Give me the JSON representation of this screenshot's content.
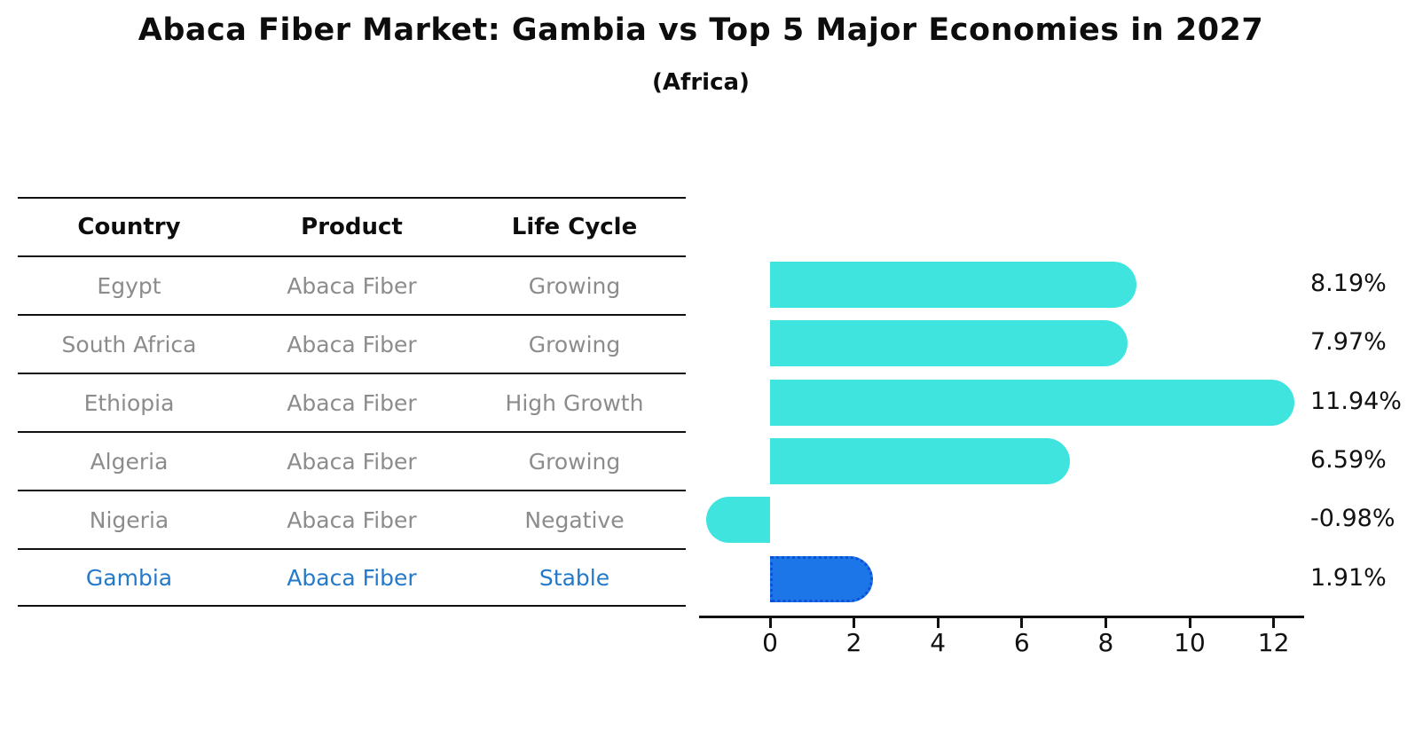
{
  "title": "Abaca Fiber Market: Gambia vs Top 5 Major Economies in 2027",
  "subtitle": "(Africa)",
  "table": {
    "headers": [
      "Country",
      "Product",
      "Life Cycle"
    ],
    "rows": [
      {
        "country": "Egypt",
        "product": "Abaca Fiber",
        "life_cycle": "Growing",
        "highlight": false
      },
      {
        "country": "South Africa",
        "product": "Abaca Fiber",
        "life_cycle": "Growing",
        "highlight": false
      },
      {
        "country": "Ethiopia",
        "product": "Abaca Fiber",
        "life_cycle": "High Growth",
        "highlight": false
      },
      {
        "country": "Algeria",
        "product": "Abaca Fiber",
        "life_cycle": "Growing",
        "highlight": false
      },
      {
        "country": "Nigeria",
        "product": "Abaca Fiber",
        "life_cycle": "Negative",
        "highlight": false
      },
      {
        "country": "Gambia",
        "product": "Abaca Fiber",
        "life_cycle": "Stable",
        "highlight": true
      }
    ]
  },
  "chart_data": {
    "type": "bar",
    "orientation": "horizontal",
    "title": "Abaca Fiber Market: Gambia vs Top 5 Major Economies in 2027",
    "subtitle": "(Africa)",
    "categories": [
      "Egypt",
      "South Africa",
      "Ethiopia",
      "Algeria",
      "Nigeria",
      "Gambia"
    ],
    "values": [
      8.19,
      7.97,
      11.94,
      6.59,
      -0.98,
      1.91
    ],
    "value_labels": [
      "8.19%",
      "7.97%",
      "11.94%",
      "6.59%",
      "-0.98%",
      "1.91%"
    ],
    "x_ticks": [
      0,
      2,
      4,
      6,
      8,
      10,
      12
    ],
    "xlim": [
      -1.7,
      12.7
    ],
    "grid": false,
    "legend": "none",
    "highlight_index": 5
  },
  "colors": {
    "bar": "#40E4DE",
    "highlight_bar": "#1C76E8",
    "highlight_border": "#0B50D8",
    "text": "#0d0d0d",
    "muted_text": "#8c8c8c",
    "highlight_text": "#2579C9",
    "axis": "#111111"
  }
}
